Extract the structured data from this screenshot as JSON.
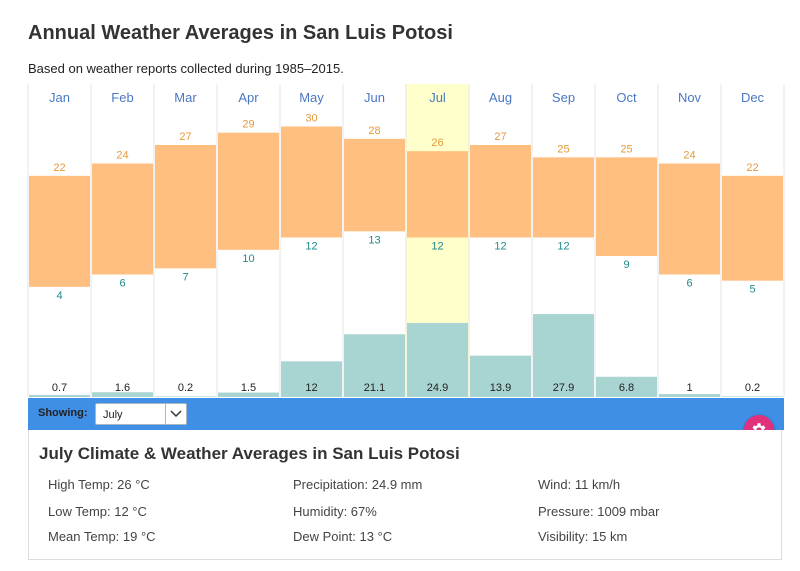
{
  "page": {
    "title": "Annual Weather Averages in San Luis Potosi",
    "subtitle": "Based on weather reports collected during 1985–2015."
  },
  "chart_data": {
    "type": "bar",
    "title": "Annual Weather Averages in San Luis Potosi",
    "categories": [
      "Jan",
      "Feb",
      "Mar",
      "Apr",
      "May",
      "Jun",
      "Jul",
      "Aug",
      "Sep",
      "Oct",
      "Nov",
      "Dec"
    ],
    "selected_month": "Jul",
    "series": [
      {
        "name": "High Temp (°C)",
        "values": [
          22,
          24,
          27,
          29,
          30,
          28,
          26,
          27,
          25,
          25,
          24,
          22
        ]
      },
      {
        "name": "Low Temp (°C)",
        "values": [
          4,
          6,
          7,
          10,
          12,
          13,
          12,
          12,
          12,
          9,
          6,
          5
        ]
      },
      {
        "name": "Precipitation (mm)",
        "values": [
          0.7,
          1.6,
          0.2,
          1.5,
          12,
          21.1,
          24.9,
          13.9,
          27.9,
          6.8,
          1,
          0.2
        ]
      }
    ],
    "temp_range": [
      -3,
      33
    ],
    "precip_range": [
      0,
      37
    ],
    "colors": {
      "temp_band": "#ffbf80",
      "precip": "#a8d4d2",
      "highlight": "#ffffcc",
      "high_label": "#e59a3a",
      "low_label": "#1f8a8a",
      "month_label": "#4a78c4"
    }
  },
  "controls": {
    "showing_label": "Showing:",
    "selected_month": "July"
  },
  "icons": {
    "dropdown": "chevron-down-icon",
    "settings": "gear-icon"
  },
  "details": {
    "title": "July Climate & Weather Averages in San Luis Potosi",
    "col1": [
      "High Temp: 26 °C",
      "Low Temp: 12 °C",
      "Mean Temp: 19 °C"
    ],
    "col2": [
      "Precipitation: 24.9 mm",
      "Humidity: 67%",
      "Dew Point: 13 °C"
    ],
    "col3": [
      "Wind: 11 km/h",
      "Pressure: 1009 mbar",
      "Visibility: 15 km"
    ]
  },
  "accent_colors": {
    "bar": "#3f8fe6",
    "gear": "#e0317a"
  }
}
